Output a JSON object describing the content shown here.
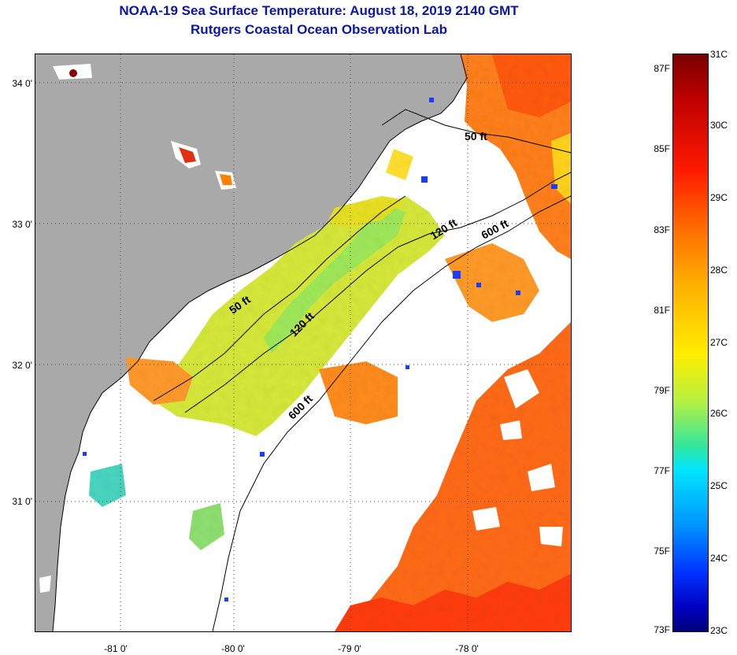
{
  "title": {
    "line1": "NOAA-19 Sea Surface Temperature:  August 18, 2019 2140 GMT",
    "line2": "Rutgers Coastal Ocean Observation Lab"
  },
  "map": {
    "lat_labels": [
      "34 0'",
      "33 0'",
      "32 0'",
      "31 0'"
    ],
    "lon_labels": [
      "-81 0'",
      "-80 0'",
      "-79 0'",
      "-78 0'"
    ],
    "contour_labels": [
      "50 ft",
      "50 ft",
      "120 ft",
      "120 ft",
      "600 ft",
      "600 ft"
    ],
    "colors": {
      "land": "#a9a9a9",
      "no_data": "#ffffff",
      "coastline": "#000000"
    }
  },
  "colorbar": {
    "fahrenheit": [
      "87F",
      "85F",
      "83F",
      "81F",
      "79F",
      "77F",
      "75F",
      "73F"
    ],
    "celsius": [
      "31C",
      "30C",
      "29C",
      "28C",
      "27C",
      "26C",
      "25C",
      "24C",
      "23C"
    ]
  }
}
